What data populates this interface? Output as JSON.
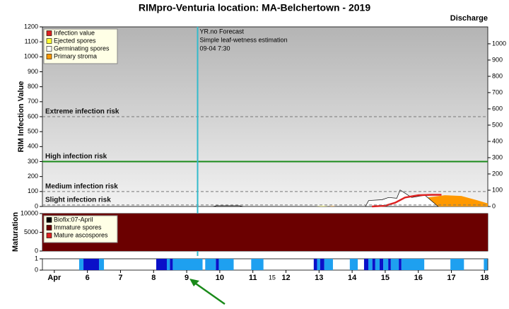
{
  "chart_data": [
    {
      "type": "area",
      "title": "RIMpro-Venturia location:  MA-Belchertown - 2019",
      "ylabel": "RIM Infection Value",
      "y2label": "Discharge",
      "xlim": [
        4.64,
        18.1
      ],
      "ylim": [
        0,
        1200
      ],
      "yticks": [
        0,
        100,
        200,
        300,
        400,
        500,
        600,
        700,
        800,
        900,
        1000,
        1100,
        1200
      ],
      "y2lim": [
        0,
        1104
      ],
      "y2ticks": [
        0,
        100,
        200,
        300,
        400,
        500,
        600,
        700,
        800,
        900,
        1000
      ],
      "legend": "upper left",
      "forecast_x": 9.33,
      "forecast_color": "#33bbcc",
      "annotations": [
        "YR.no Forecast",
        "Simple leaf-wetness estimation",
        "09-04 7:30"
      ],
      "risk_levels": [
        {
          "label": "Extreme infection risk",
          "value": 600,
          "style": "dashed",
          "color": "#777777"
        },
        {
          "label": "High infection risk",
          "value": 300,
          "style": "solid",
          "color": "#1a8a1a"
        },
        {
          "label": "Medium infection risk",
          "value": 100,
          "style": "dashed",
          "color": "#777777"
        },
        {
          "label": "Slight infection risk",
          "value": 10,
          "style": "dashed",
          "color": "#777777"
        }
      ],
      "series": [
        {
          "name": "Infection value",
          "color": "#dd2222",
          "style": "line",
          "x": [
            14.6,
            15.0,
            15.3,
            15.6,
            16.0,
            16.4,
            16.7
          ],
          "values": [
            0,
            5,
            25,
            60,
            75,
            78,
            78
          ]
        },
        {
          "name": "Ejected spores",
          "color": "#ffff33",
          "style": "area",
          "x": [
            12.9,
            13.1,
            13.3
          ],
          "values": [
            0,
            3,
            0
          ]
        },
        {
          "name": "Germinating spores",
          "color": "#ffffff",
          "style": "area",
          "x": [
            9.8,
            9.9,
            10.6,
            10.7,
            12.0,
            14.4,
            14.5,
            14.9,
            15.1,
            15.35,
            15.45,
            15.8,
            16.2,
            16.6
          ],
          "values": [
            0,
            5,
            5,
            0,
            null,
            0,
            40,
            45,
            60,
            55,
            110,
            60,
            75,
            0
          ]
        },
        {
          "name": "Primary stroma",
          "color": "#ff9900",
          "style": "area",
          "x": [
            13.3,
            13.4,
            13.5,
            15.5,
            15.9,
            16.3,
            16.8,
            17.3,
            17.8,
            18.1
          ],
          "values": [
            0,
            3,
            0,
            0,
            20,
            60,
            75,
            70,
            40,
            20
          ]
        }
      ]
    },
    {
      "type": "area",
      "ylabel": "Maturation",
      "xlim": [
        4.64,
        18.1
      ],
      "ylim": [
        0,
        10000
      ],
      "yticks": [
        0,
        5000,
        10000
      ],
      "legend": "upper left",
      "series": [
        {
          "name": "Biofix:07-April",
          "color": "#000000"
        },
        {
          "name": "Immature spores",
          "color": "#6b0000",
          "style": "area",
          "x": [
            4.64,
            18.1
          ],
          "values": [
            10000,
            10000
          ]
        },
        {
          "name": "Mature ascospores",
          "color": "#dd2222"
        }
      ]
    },
    {
      "type": "interval",
      "xlim": [
        4.64,
        18.1
      ],
      "ylim": [
        0,
        1
      ],
      "yticks": [
        0,
        1
      ],
      "xticks": [
        {
          "value": 5,
          "label": "Apr"
        },
        6,
        7,
        8,
        9,
        10,
        11,
        12,
        13,
        14,
        15,
        16,
        17,
        18
      ],
      "extra_label": "15",
      "extra_label_x": 11.58,
      "series": [
        {
          "color": "#1ea0f0",
          "x_start": [
            5.75,
            6.35,
            8.4,
            8.58,
            9.56,
            9.97,
            10.95,
            12.94,
            13.16,
            13.93,
            14.49,
            14.7,
            14.94,
            15.17,
            15.49,
            16.97,
            17.98
          ],
          "x_end": [
            5.88,
            6.5,
            8.49,
            9.48,
            9.88,
            10.42,
            11.32,
            13.03,
            13.42,
            14.17,
            14.61,
            14.83,
            15.09,
            15.41,
            16.18,
            17.38,
            18.09
          ],
          "values": [
            1,
            1,
            1,
            1,
            1,
            1,
            1,
            1,
            1,
            1,
            1,
            1,
            1,
            1,
            1,
            1,
            1
          ]
        },
        {
          "color": "#0a10c8",
          "x_start": [
            5.88,
            8.08,
            8.49,
            9.88,
            12.84,
            13.03,
            14.36,
            14.61,
            14.83,
            15.09,
            15.41
          ],
          "x_end": [
            6.35,
            8.4,
            8.58,
            9.97,
            12.94,
            13.16,
            14.49,
            14.7,
            14.94,
            15.17,
            15.49
          ],
          "values": [
            1,
            1,
            1,
            1,
            1,
            1,
            1,
            1,
            1,
            1,
            1
          ]
        }
      ]
    }
  ]
}
